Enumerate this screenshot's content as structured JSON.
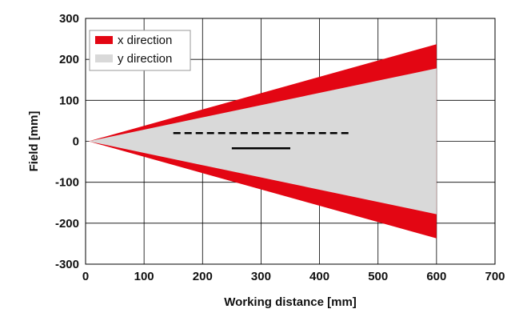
{
  "chart_data": {
    "type": "area",
    "title": "",
    "xlabel": "Working distance [mm]",
    "ylabel": "Field [mm]",
    "xlim": [
      0,
      700
    ],
    "ylim": [
      -300,
      300
    ],
    "xticks": [
      "0",
      "100",
      "200",
      "300",
      "400",
      "500",
      "600",
      "700"
    ],
    "yticks": [
      "300",
      "200",
      "100",
      "0",
      "-100",
      "-200",
      "-300"
    ],
    "grid": true,
    "legend_position": "top-left",
    "series": [
      {
        "name": "x direction",
        "color": "#e30613",
        "x": [
          5,
          600
        ],
        "upper": [
          0,
          237
        ],
        "lower": [
          0,
          -237
        ]
      },
      {
        "name": "y direction",
        "color": "#d9d9d9",
        "x": [
          5,
          600
        ],
        "upper": [
          0,
          178
        ],
        "lower": [
          0,
          -178
        ]
      }
    ],
    "annotations": [
      {
        "style": "dashed",
        "color": "#000000",
        "x": [
          150,
          455
        ],
        "y": 20
      },
      {
        "style": "solid",
        "color": "#000000",
        "x": [
          250,
          350
        ],
        "y": -17
      }
    ]
  }
}
